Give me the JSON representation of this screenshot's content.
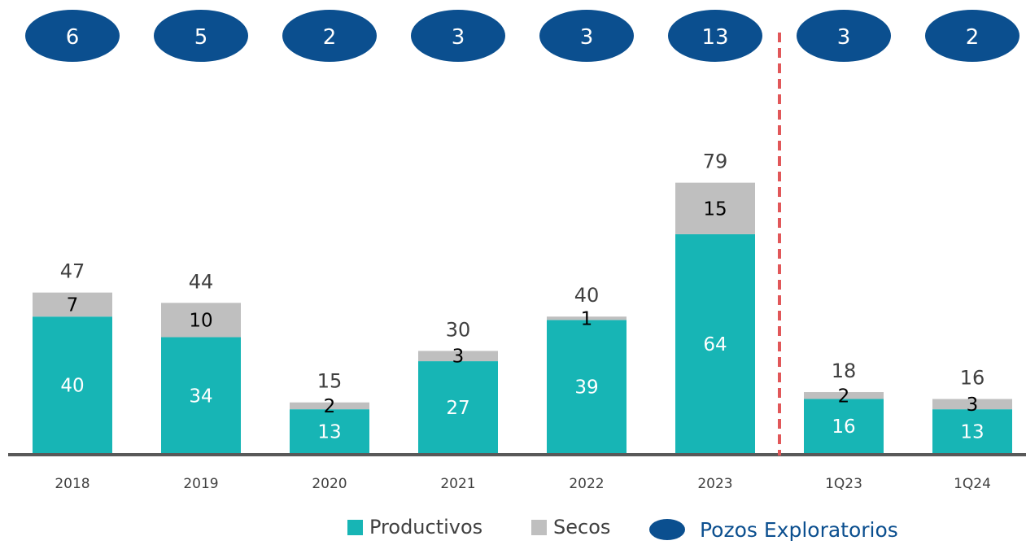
{
  "chart_data": {
    "type": "bar",
    "stacked": true,
    "categories": [
      "2018",
      "2019",
      "2020",
      "2021",
      "2022",
      "2023",
      "1Q23",
      "1Q24"
    ],
    "series": [
      {
        "name": "Productivos",
        "values": [
          40,
          34,
          13,
          27,
          39,
          64,
          16,
          13
        ],
        "color": "#17B5B5",
        "label_color": "#ffffff"
      },
      {
        "name": "Secos",
        "values": [
          7,
          10,
          2,
          3,
          1,
          15,
          2,
          3
        ],
        "color": "#BFBFBF",
        "label_color": "#000000"
      }
    ],
    "totals": [
      47,
      44,
      15,
      30,
      40,
      79,
      18,
      16
    ],
    "exploratory_wells": {
      "name": "Pozos Exploratorios",
      "values": [
        6,
        5,
        2,
        3,
        3,
        13,
        3,
        2
      ],
      "color": "#0B4F8F"
    },
    "divider_after_index": 5,
    "divider_color": "#E15759",
    "axis_color": "#595959",
    "title": "",
    "xlabel": "",
    "ylabel": "",
    "legend_position": "bottom"
  }
}
